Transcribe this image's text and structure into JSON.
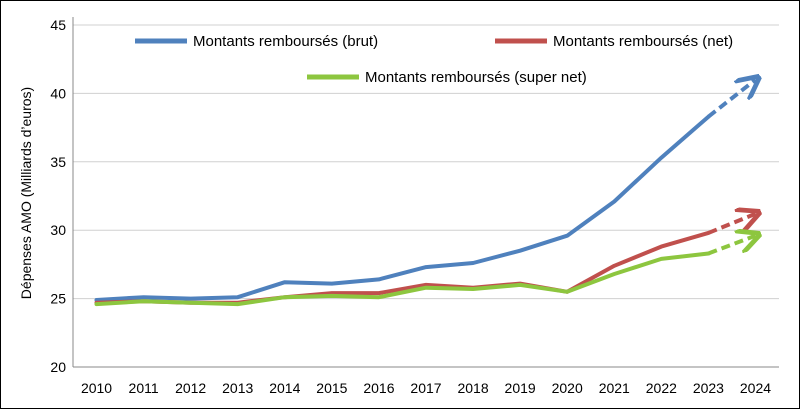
{
  "chart_data": {
    "type": "line",
    "ylabel": "Dépenses AMO (Milliards d’euros)",
    "xlabel": "",
    "title": "",
    "ylim": [
      20,
      45
    ],
    "yticks": [
      20,
      25,
      30,
      35,
      40,
      45
    ],
    "categories": [
      "2010",
      "2011",
      "2012",
      "2013",
      "2014",
      "2015",
      "2016",
      "2017",
      "2018",
      "2019",
      "2020",
      "2021",
      "2022",
      "2023",
      "2024"
    ],
    "legend_placement": "top",
    "grid": "horizontal",
    "series": [
      {
        "name": "Montants remboursés (brut)",
        "color": "#4f81bd",
        "values": [
          24.9,
          25.1,
          25.0,
          25.1,
          26.2,
          26.1,
          26.4,
          27.3,
          27.6,
          28.5,
          29.6,
          32.1,
          35.3,
          38.3,
          41.0
        ],
        "projection_from": "2023"
      },
      {
        "name": "Montants remboursés (net)",
        "color": "#c0504d",
        "values": [
          24.7,
          24.8,
          24.7,
          24.7,
          25.1,
          25.4,
          25.4,
          26.0,
          25.8,
          26.1,
          25.5,
          27.4,
          28.8,
          29.8,
          31.2
        ],
        "projection_from": "2023"
      },
      {
        "name": "Montants remboursés (super net)",
        "color": "#8dc63f",
        "values": [
          24.6,
          24.8,
          24.7,
          24.6,
          25.1,
          25.2,
          25.1,
          25.8,
          25.7,
          26.0,
          25.5,
          26.8,
          27.9,
          28.3,
          29.6
        ],
        "projection_from": "2023"
      }
    ]
  }
}
